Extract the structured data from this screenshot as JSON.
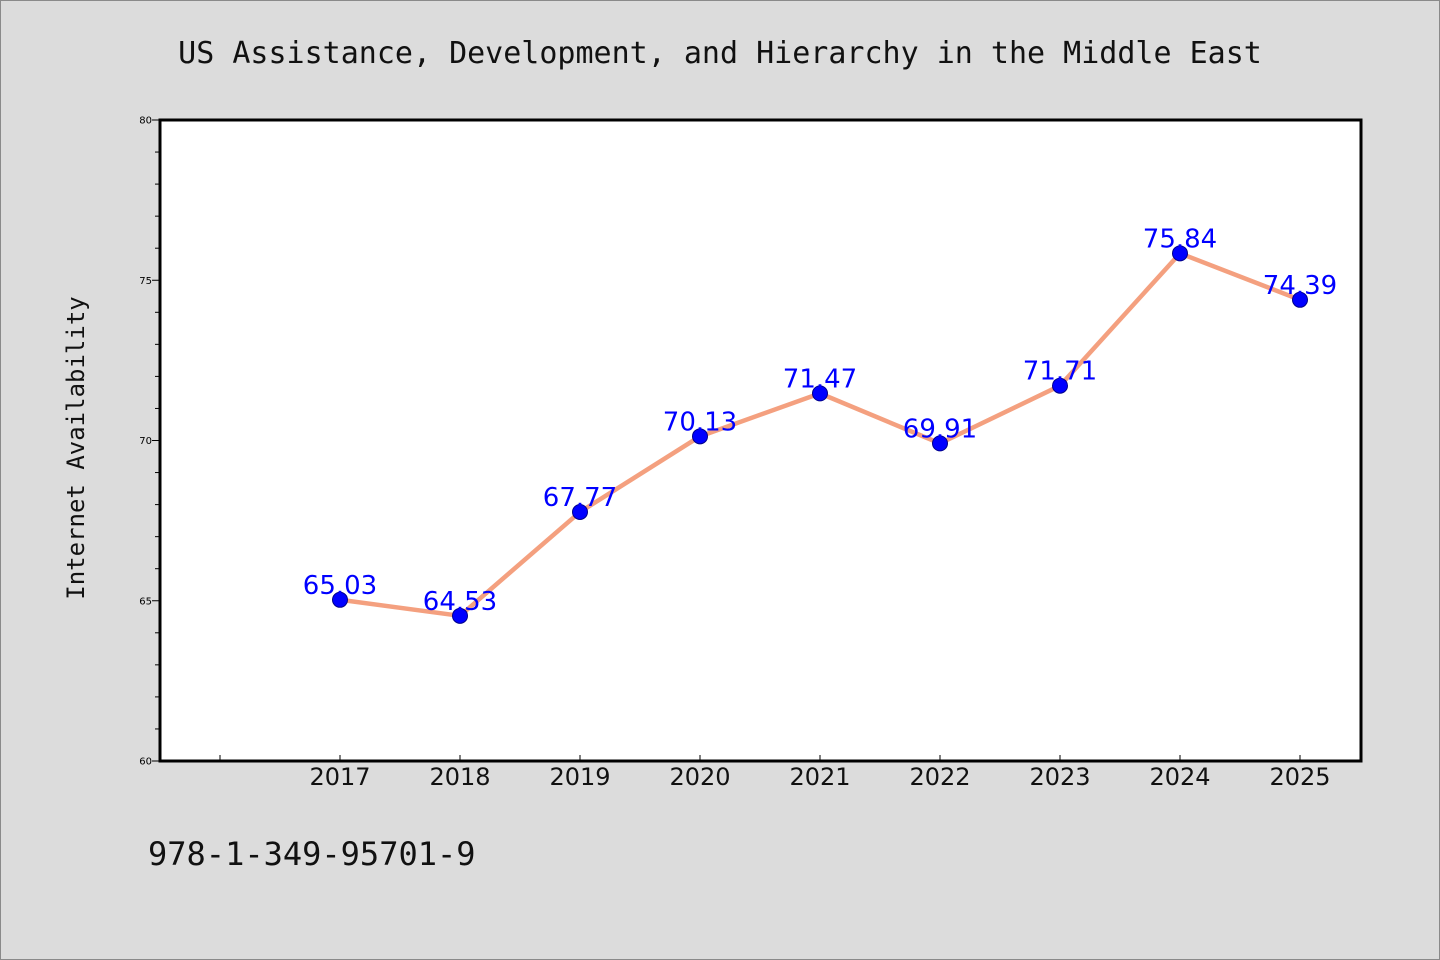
{
  "chart_data": {
    "type": "line",
    "title": "US Assistance, Development, and Hierarchy in the Middle East",
    "xlabel": "",
    "ylabel": "Internet Availability",
    "categories": [
      "2017",
      "2018",
      "2019",
      "2020",
      "2021",
      "2022",
      "2023",
      "2024",
      "2025"
    ],
    "series": [
      {
        "values": [
          65.03,
          64.53,
          67.77,
          70.13,
          71.47,
          69.91,
          71.71,
          75.84,
          74.39
        ],
        "labels": [
          "65.03",
          "64.53",
          "67.77",
          "70.13",
          "71.47",
          "69.91",
          "71.71",
          "75.84",
          "74.39"
        ]
      }
    ],
    "ylim": [
      60,
      80
    ],
    "yticks": [
      60,
      65,
      70,
      75,
      80
    ],
    "ytick_labels": [
      "60",
      "65",
      "70",
      "75",
      "80"
    ],
    "grid": false,
    "line_color": "#f4a07f",
    "marker_color": "#0000ff",
    "label_color": "#0000ff"
  },
  "footer": {
    "isbn": "978-1-349-95701-9"
  }
}
